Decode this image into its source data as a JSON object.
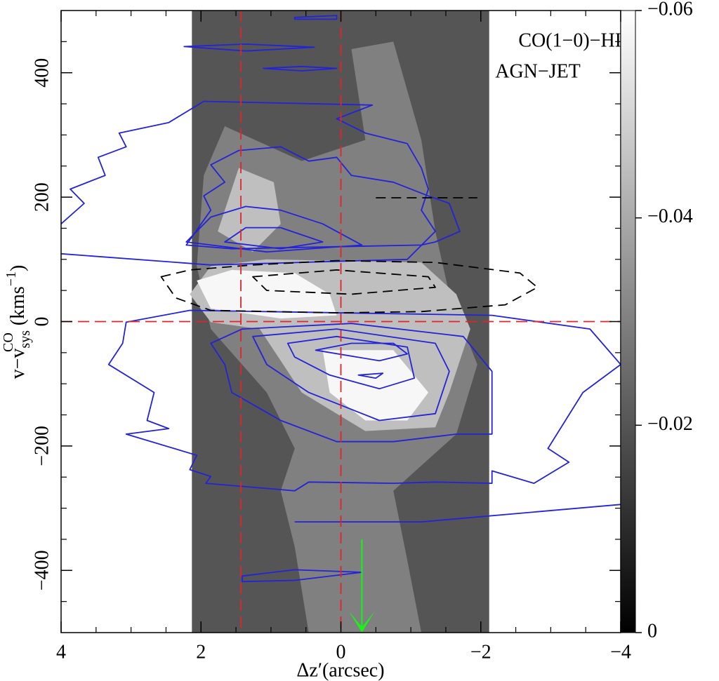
{
  "chart_data": {
    "type": "contour",
    "annotations": [
      "CO(1−0)−HI",
      "AGN−JET"
    ],
    "x_label": "Δz′(arcsec)",
    "y_label": [
      "v−v",
      "sys",
      "CO",
      "(kms",
      "−1",
      ")"
    ],
    "xlim": [
      4,
      -4
    ],
    "ylim": [
      -500,
      500
    ],
    "xticks": [
      4,
      2,
      0,
      {
        "value": -2,
        "label": "−2"
      },
      {
        "value": -4,
        "label": "−4"
      }
    ],
    "xminorticks": [
      3.5,
      3,
      2.5,
      1.5,
      1,
      0.5,
      -0.5,
      -1,
      -1.5,
      -2.5,
      -3,
      -3.5
    ],
    "yticks": [
      {
        "value": -400,
        "label": "−400"
      },
      {
        "value": -200,
        "label": "−200"
      },
      0,
      200,
      400
    ],
    "yminorticks": [
      -450,
      -350,
      -300,
      -250,
      -150,
      -100,
      -50,
      50,
      100,
      150,
      250,
      300,
      350,
      450
    ],
    "colorbar": {
      "lim": [
        0,
        -0.06
      ],
      "ticks": [
        0,
        {
          "value": -0.02,
          "label": "−0.02"
        },
        {
          "value": -0.04,
          "label": "−0.04"
        },
        {
          "value": -0.06,
          "label": "−0.06"
        }
      ]
    },
    "band": {
      "x": [
        2.13,
        -2.12
      ],
      "level": -0.02
    },
    "filled": [
      {
        "level": -0.03,
        "x": [
          2.06,
          1.86,
          1.06,
          0.66,
          0.86,
          0.66,
          0.46,
          -1.15,
          -0.95,
          -0.75,
          -1.65,
          -1.95,
          -1.55,
          -1.35,
          -1.15,
          -0.75,
          -0.15,
          -0.35,
          0.56,
          1.66,
          1.96
        ],
        "y": [
          89,
          -12,
          -114,
          -204,
          -272,
          -362,
          -500,
          -500,
          -384,
          -272,
          -181,
          -69,
          44,
          145,
          292,
          450,
          438,
          292,
          258,
          314,
          235
        ]
      },
      {
        "level": -0.045,
        "x": [
          2.16,
          1.86,
          1.06,
          -1.15,
          -1.65,
          -1.85,
          -1.55,
          -1.35,
          -0.35,
          0.56,
          1.16,
          1.86
        ],
        "y": [
          44,
          89,
          100,
          95,
          44,
          -12,
          -114,
          -170,
          -176,
          -114,
          -12,
          -1
        ]
      },
      {
        "level": -0.045,
        "x": [
          1.76,
          1.46,
          0.96,
          0.86,
          1.26
        ],
        "y": [
          145,
          247,
          224,
          157,
          112
        ]
      },
      {
        "level": -0.058,
        "x": [
          2.06,
          1.56,
          0.66,
          0.16,
          0.06,
          0.86,
          1.86
        ],
        "y": [
          66,
          83,
          78,
          44,
          10,
          5,
          21
        ]
      },
      {
        "level": -0.058,
        "x": [
          0.26,
          -0.75,
          -1.25,
          -0.95,
          -0.35,
          0.16
        ],
        "y": [
          -46,
          -46,
          -114,
          -159,
          -159,
          -114
        ]
      }
    ],
    "contours": [
      {
        "color": "#2323d8",
        "dashed": false,
        "closed": false,
        "x": [
          4.0,
          3.67,
          3.87,
          3.37,
          3.47,
          3.07,
          3.17,
          2.46,
          1.96,
          -0.45,
          0.06,
          -0.35,
          -0.95,
          -1.15,
          -1.25,
          -1.15,
          -1.35,
          -0.95,
          1.86,
          4.0
        ],
        "y": [
          157,
          190,
          213,
          235,
          264,
          281,
          303,
          320,
          354,
          348,
          326,
          303,
          286,
          247,
          213,
          179,
          145,
          100,
          91,
          109
        ]
      },
      {
        "color": "#2323d8",
        "dashed": false,
        "closed": true,
        "x": [
          2.21,
          1.86,
          1.96,
          1.66,
          1.86,
          1.46,
          0.86,
          0.46,
          0.06,
          -0.15,
          -0.75,
          -1.25,
          -1.55,
          -1.7,
          -1.35,
          -1.15,
          1.56
        ],
        "y": [
          123,
          179,
          202,
          224,
          252,
          275,
          281,
          258,
          264,
          235,
          224,
          202,
          190,
          145,
          128,
          123,
          117
        ]
      },
      {
        "color": "#2323d8",
        "dashed": false,
        "closed": true,
        "x": [
          2.21,
          1.86,
          1.36,
          0.86,
          0.26,
          -0.3,
          1.06
        ],
        "y": [
          128,
          168,
          185,
          179,
          157,
          123,
          112
        ]
      },
      {
        "color": "#2323d8",
        "dashed": false,
        "closed": true,
        "x": [
          1.66,
          1.36,
          0.86,
          0.26,
          0.86
        ],
        "y": [
          128,
          151,
          151,
          128,
          117
        ]
      },
      {
        "color": "#2323d8",
        "dashed": false,
        "closed": true,
        "x": [
          0.66,
          0.06,
          0.06,
          0.66
        ],
        "y": [
          489,
          492,
          486,
          486
        ]
      },
      {
        "color": "#2323d8",
        "dashed": false,
        "closed": true,
        "x": [
          2.24,
          1.36,
          0.38,
          1.36
        ],
        "y": [
          442,
          446,
          441,
          435
        ]
      },
      {
        "color": "#2323d8",
        "dashed": false,
        "closed": true,
        "x": [
          1.11,
          0.56,
          0.06,
          0.56
        ],
        "y": [
          407,
          410,
          407,
          403
        ]
      },
      {
        "color": "#2323d8",
        "dashed": false,
        "closed": true,
        "x": [
          -4.0,
          -3.56,
          -2.16,
          2.16,
          3.07,
          3.12,
          3.32,
          2.67,
          2.77,
          2.46,
          3.07,
          2.06,
          2.16,
          1.86,
          1.93,
          0.66,
          0.46,
          -0.75,
          -1.35,
          -2.16,
          -2.16,
          -2.76,
          -3.26,
          -2.96,
          -3.46
        ],
        "y": [
          -69,
          -12,
          10,
          18,
          -1,
          -35,
          -69,
          -114,
          -159,
          -172,
          -181,
          -215,
          -238,
          -249,
          -260,
          -272,
          -258,
          -260,
          -258,
          -260,
          -240,
          -260,
          -226,
          -204,
          -114
        ]
      },
      {
        "color": "#2323d8",
        "dashed": false,
        "closed": true,
        "x": [
          1.86,
          1.41,
          -0.15,
          -1.75,
          -2.16,
          -2.16,
          -1.65,
          -0.75,
          0.06,
          0.86,
          1.56,
          1.66
        ],
        "y": [
          -35,
          -12,
          -3,
          -24,
          -80,
          -181,
          -181,
          -193,
          -193,
          -159,
          -114,
          -69
        ]
      },
      {
        "color": "#2323d8",
        "dashed": false,
        "closed": true,
        "x": [
          1.26,
          0.06,
          -1.35,
          -1.55,
          -1.35,
          -0.55,
          0.46,
          1.06
        ],
        "y": [
          -24,
          -12,
          -35,
          -80,
          -148,
          -159,
          -114,
          -69
        ]
      },
      {
        "color": "#2323d8",
        "dashed": false,
        "closed": true,
        "x": [
          0.76,
          0.06,
          -0.95,
          -1.05,
          -0.55,
          0.16,
          0.66
        ],
        "y": [
          -35,
          -24,
          -41,
          -91,
          -108,
          -86,
          -57
        ]
      },
      {
        "color": "#2323d8",
        "dashed": false,
        "closed": true,
        "x": [
          0.36,
          -0.15,
          -0.75,
          -0.95,
          -0.55
        ],
        "y": [
          -46,
          -35,
          -35,
          -52,
          -63
        ]
      },
      {
        "color": "#2323d8",
        "dashed": false,
        "closed": true,
        "x": [
          -0.25,
          -0.6,
          -0.5
        ],
        "y": [
          -86,
          -83,
          -91
        ]
      },
      {
        "color": "#2323d8",
        "dashed": false,
        "closed": false,
        "x": [
          0.66,
          -1.15,
          -4.0
        ],
        "y": [
          -322,
          -322,
          -294
        ]
      },
      {
        "color": "#2323d8",
        "dashed": false,
        "closed": true,
        "x": [
          1.41,
          0.66,
          -0.3,
          0.66,
          1.41
        ],
        "y": [
          -409,
          -399,
          -403,
          -416,
          -418
        ]
      },
      {
        "color": "#000000",
        "dashed": true,
        "closed": true,
        "x": [
          2.57,
          2.16,
          1.26,
          0.06,
          -1.35,
          -2.56,
          -2.81,
          -2.35,
          -1.15,
          0.06,
          1.86,
          2.36
        ],
        "y": [
          72,
          83,
          91,
          98,
          95,
          78,
          55,
          27,
          16,
          14,
          18,
          38
        ]
      },
      {
        "color": "#000000",
        "dashed": true,
        "closed": true,
        "x": [
          1.26,
          0.06,
          -1.25,
          -1.35,
          -0.15,
          1.06
        ],
        "y": [
          72,
          83,
          72,
          55,
          44,
          50
        ]
      },
      {
        "color": "#000000",
        "dashed": true,
        "closed": false,
        "x": [
          -0.5,
          -1.95
        ],
        "y": [
          199,
          199
        ]
      }
    ],
    "vlines": [
      1.43,
      0
    ],
    "hlines": [
      0
    ],
    "ref_color": "#e3232b",
    "arrow": {
      "x": -0.3,
      "y": [
        -350,
        -500
      ],
      "color": "#19f219"
    }
  }
}
